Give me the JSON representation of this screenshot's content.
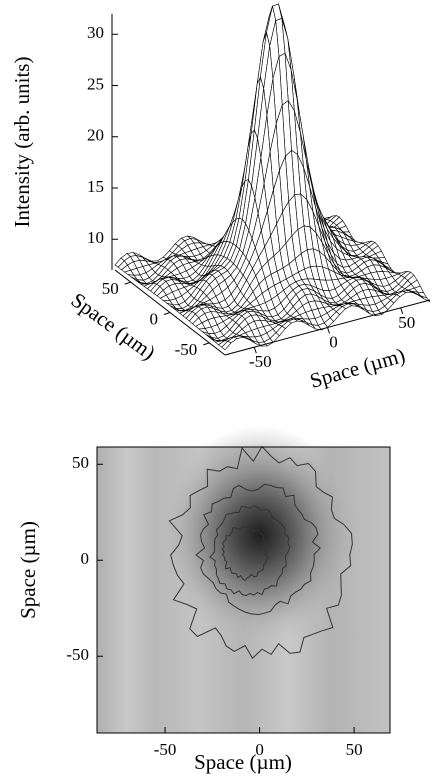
{
  "chart_data": [
    {
      "type": "surface",
      "zlabel": "Intensity (arb. units)",
      "zlim": [
        7,
        32
      ],
      "zticks": [
        10,
        15,
        20,
        25,
        30
      ],
      "xlabel": "Space (µm)",
      "xlim": [
        -70,
        70
      ],
      "xticks": [
        -50,
        0,
        50
      ],
      "ylabel": "Space (µm)",
      "ylim": [
        -70,
        70
      ],
      "yticks": [
        50,
        0,
        -50
      ]
    },
    {
      "type": "contour",
      "xlabel": "Space (µm)",
      "xlim": [
        -86,
        69
      ],
      "xticks": [
        -50,
        0,
        50
      ],
      "ylabel": "Space (µm)",
      "ylim": [
        -90,
        59
      ],
      "yticks": [
        -50,
        0,
        50
      ]
    }
  ]
}
